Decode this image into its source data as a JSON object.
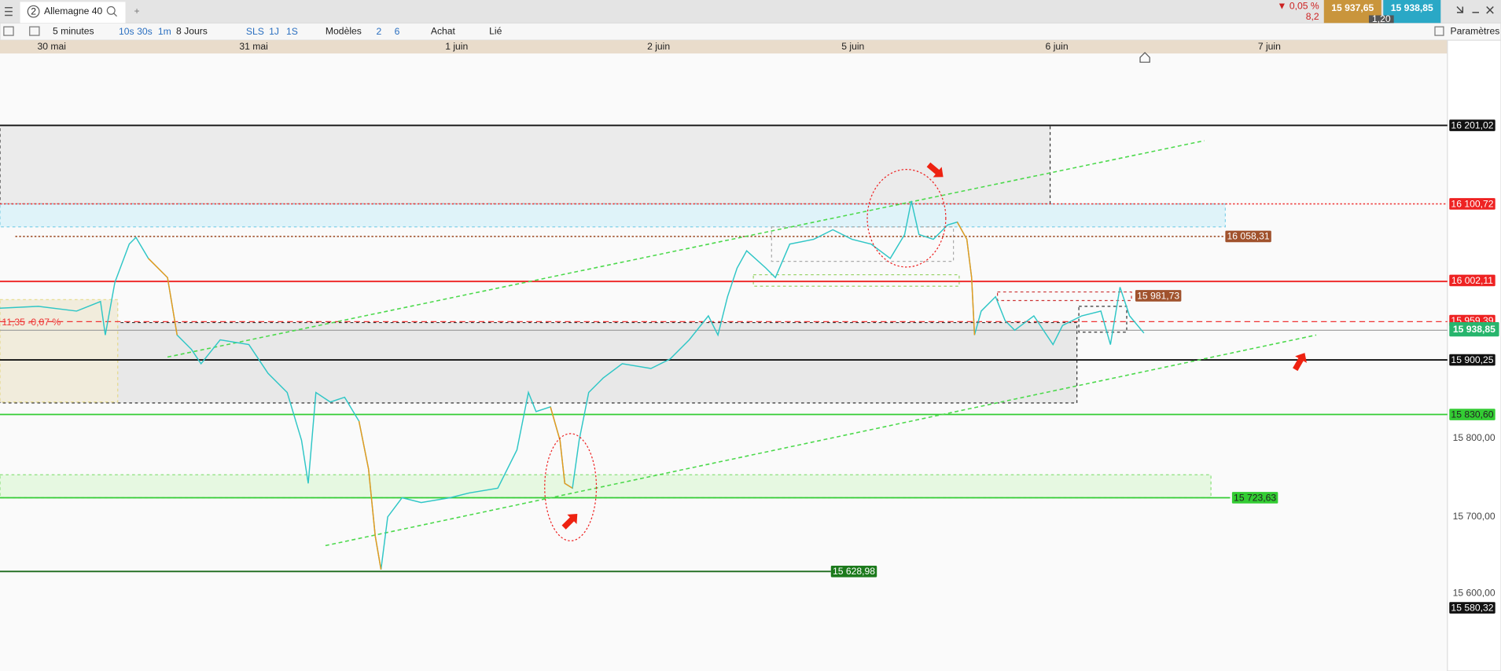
{
  "tab": {
    "number": "2",
    "title": "Allemagne 40",
    "add": "+"
  },
  "quote": {
    "change_pct": "▼ 0,05 %",
    "change": "8,2",
    "bid": "15 937,65",
    "spread": "1,20",
    "ask": "15 938,85"
  },
  "toolbar": {
    "interval": "5 minutes",
    "quick_intervals": [
      "10s",
      "30s",
      "1m"
    ],
    "period": "8 Jours",
    "modes": [
      "SLS",
      "1J",
      "1S"
    ],
    "models": "Modèles",
    "counts": [
      "2",
      "6"
    ],
    "buy": "Achat",
    "linked": "Lié",
    "settings": "Paramètres"
  },
  "dates": [
    "30 mai",
    "31 mai",
    "1 juin",
    "2 juin",
    "5 juin",
    "6 juin",
    "7 juin"
  ],
  "price_axis": [
    "15 800,00",
    "15 700,00",
    "15 600,00"
  ],
  "levels": [
    "16 201,02",
    "16 100,72",
    "16 058,31",
    "16 002,11",
    "15 981,73",
    "15 959,39",
    "15 938,85",
    "15 900,25",
    "15 830,60",
    "15 723,63",
    "15 628,98",
    "15 580,32"
  ],
  "position": "11,35 -0,07 %"
}
